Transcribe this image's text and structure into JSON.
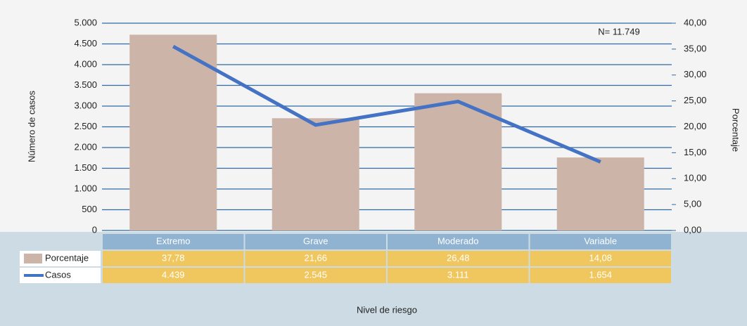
{
  "chart_data": {
    "type": "bar_line",
    "annotation": "N= 11.749",
    "x_label": "Nivel de riesgo",
    "y_label": "Número de casos",
    "y2_label": "Porcentaje",
    "categories": [
      "Extremo",
      "Grave",
      "Moderado",
      "Variable"
    ],
    "series": [
      {
        "name": "Porcentaje",
        "type": "bar",
        "axis": "y2",
        "color": "#cdb4a8",
        "values": [
          37.78,
          21.66,
          26.48,
          14.08
        ],
        "value_labels": [
          "37,78",
          "21,66",
          "26,48",
          "14,08"
        ]
      },
      {
        "name": "Casos",
        "type": "line",
        "axis": "y",
        "color": "#4472c4",
        "values": [
          4439,
          2545,
          3111,
          1654
        ],
        "value_labels": [
          "4.439",
          "2.545",
          "3.111",
          "1.654"
        ]
      }
    ],
    "ylim": [
      0,
      5000
    ],
    "yticks": [
      0,
      500,
      {
        "value": 1000,
        "label": "1.000"
      },
      {
        "value": 1500,
        "label": "1.500"
      },
      {
        "value": 2000,
        "label": "2.000"
      },
      {
        "value": 2500,
        "label": "2.500"
      },
      {
        "value": 3000,
        "label": "3.000"
      },
      {
        "value": 3500,
        "label": "3.500"
      },
      {
        "value": 4000,
        "label": "4.000"
      },
      {
        "value": 4500,
        "label": "4.500"
      },
      {
        "value": 5000,
        "label": "5.000"
      }
    ],
    "y2lim": [
      0,
      40
    ],
    "y2ticks": [
      {
        "value": 0,
        "label": "0,00"
      },
      {
        "value": 5,
        "label": "5,00"
      },
      {
        "value": 10,
        "label": "10,00"
      },
      {
        "value": 15,
        "label": "15,00"
      },
      {
        "value": 20,
        "label": "20,00"
      },
      {
        "value": 25,
        "label": "25,00"
      },
      {
        "value": 30,
        "label": "30,00"
      },
      {
        "value": 35,
        "label": "35,00"
      },
      {
        "value": 40,
        "label": "40,00"
      }
    ],
    "grid": true
  }
}
